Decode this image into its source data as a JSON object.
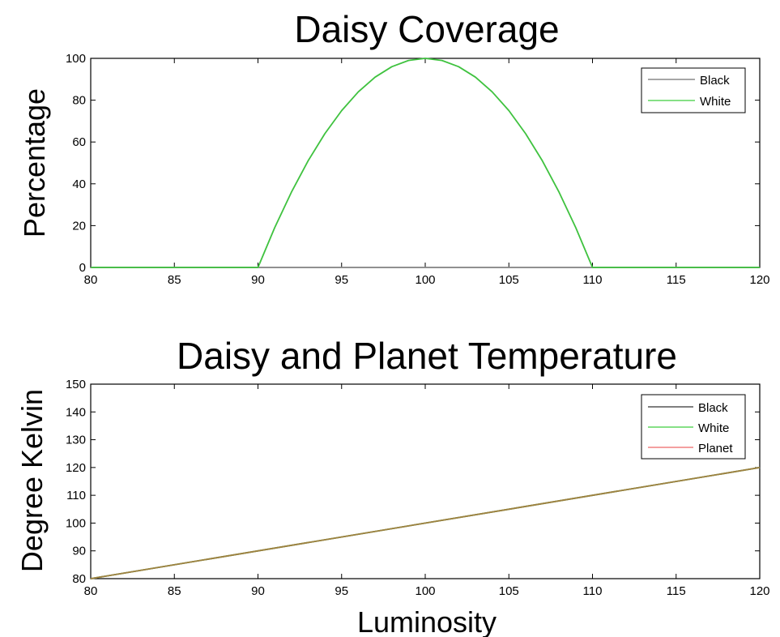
{
  "chart_data": [
    {
      "type": "line",
      "title": "Daisy Coverage",
      "xlabel": "",
      "ylabel": "Percentage",
      "xlim": [
        80,
        120
      ],
      "ylim": [
        0,
        100
      ],
      "xticks": [
        80,
        85,
        90,
        95,
        100,
        105,
        110,
        115,
        120
      ],
      "yticks": [
        0,
        20,
        40,
        60,
        80,
        100
      ],
      "grid": false,
      "legend_position": "top-right",
      "series": [
        {
          "name": "Black",
          "color": "#888888",
          "x": [
            80,
            90,
            110,
            120
          ],
          "y": [
            0,
            0,
            0,
            0
          ]
        },
        {
          "name": "White",
          "color": "#3fc23f",
          "x": [
            80,
            85,
            90,
            91,
            92,
            93,
            94,
            95,
            96,
            97,
            98,
            99,
            100,
            101,
            102,
            103,
            104,
            105,
            106,
            107,
            108,
            109,
            110,
            115,
            120
          ],
          "y": [
            0,
            0,
            0,
            19,
            36,
            51,
            64,
            75,
            84,
            91,
            96,
            99,
            100,
            99,
            96,
            91,
            84,
            75,
            64,
            51,
            36,
            19,
            0,
            0,
            0
          ]
        }
      ]
    },
    {
      "type": "line",
      "title": "Daisy and Planet Temperature",
      "xlabel": "Luminosity",
      "ylabel": "Degree Kelvin",
      "xlim": [
        80,
        120
      ],
      "ylim": [
        80,
        150
      ],
      "xticks": [
        80,
        85,
        90,
        95,
        100,
        105,
        110,
        115,
        120
      ],
      "yticks": [
        80,
        90,
        100,
        110,
        120,
        130,
        140,
        150
      ],
      "grid": false,
      "legend_position": "top-right",
      "series": [
        {
          "name": "Black",
          "color": "#666666",
          "x": [
            80,
            120
          ],
          "y": [
            80,
            120
          ]
        },
        {
          "name": "White",
          "color": "#6fd86f",
          "x": [
            80,
            120
          ],
          "y": [
            80,
            120
          ]
        },
        {
          "name": "Planet",
          "color": "#a08040",
          "x": [
            80,
            120
          ],
          "y": [
            80,
            120
          ]
        }
      ],
      "legend_colors": [
        "#555555",
        "#5fd65f",
        "#f08080"
      ]
    }
  ]
}
